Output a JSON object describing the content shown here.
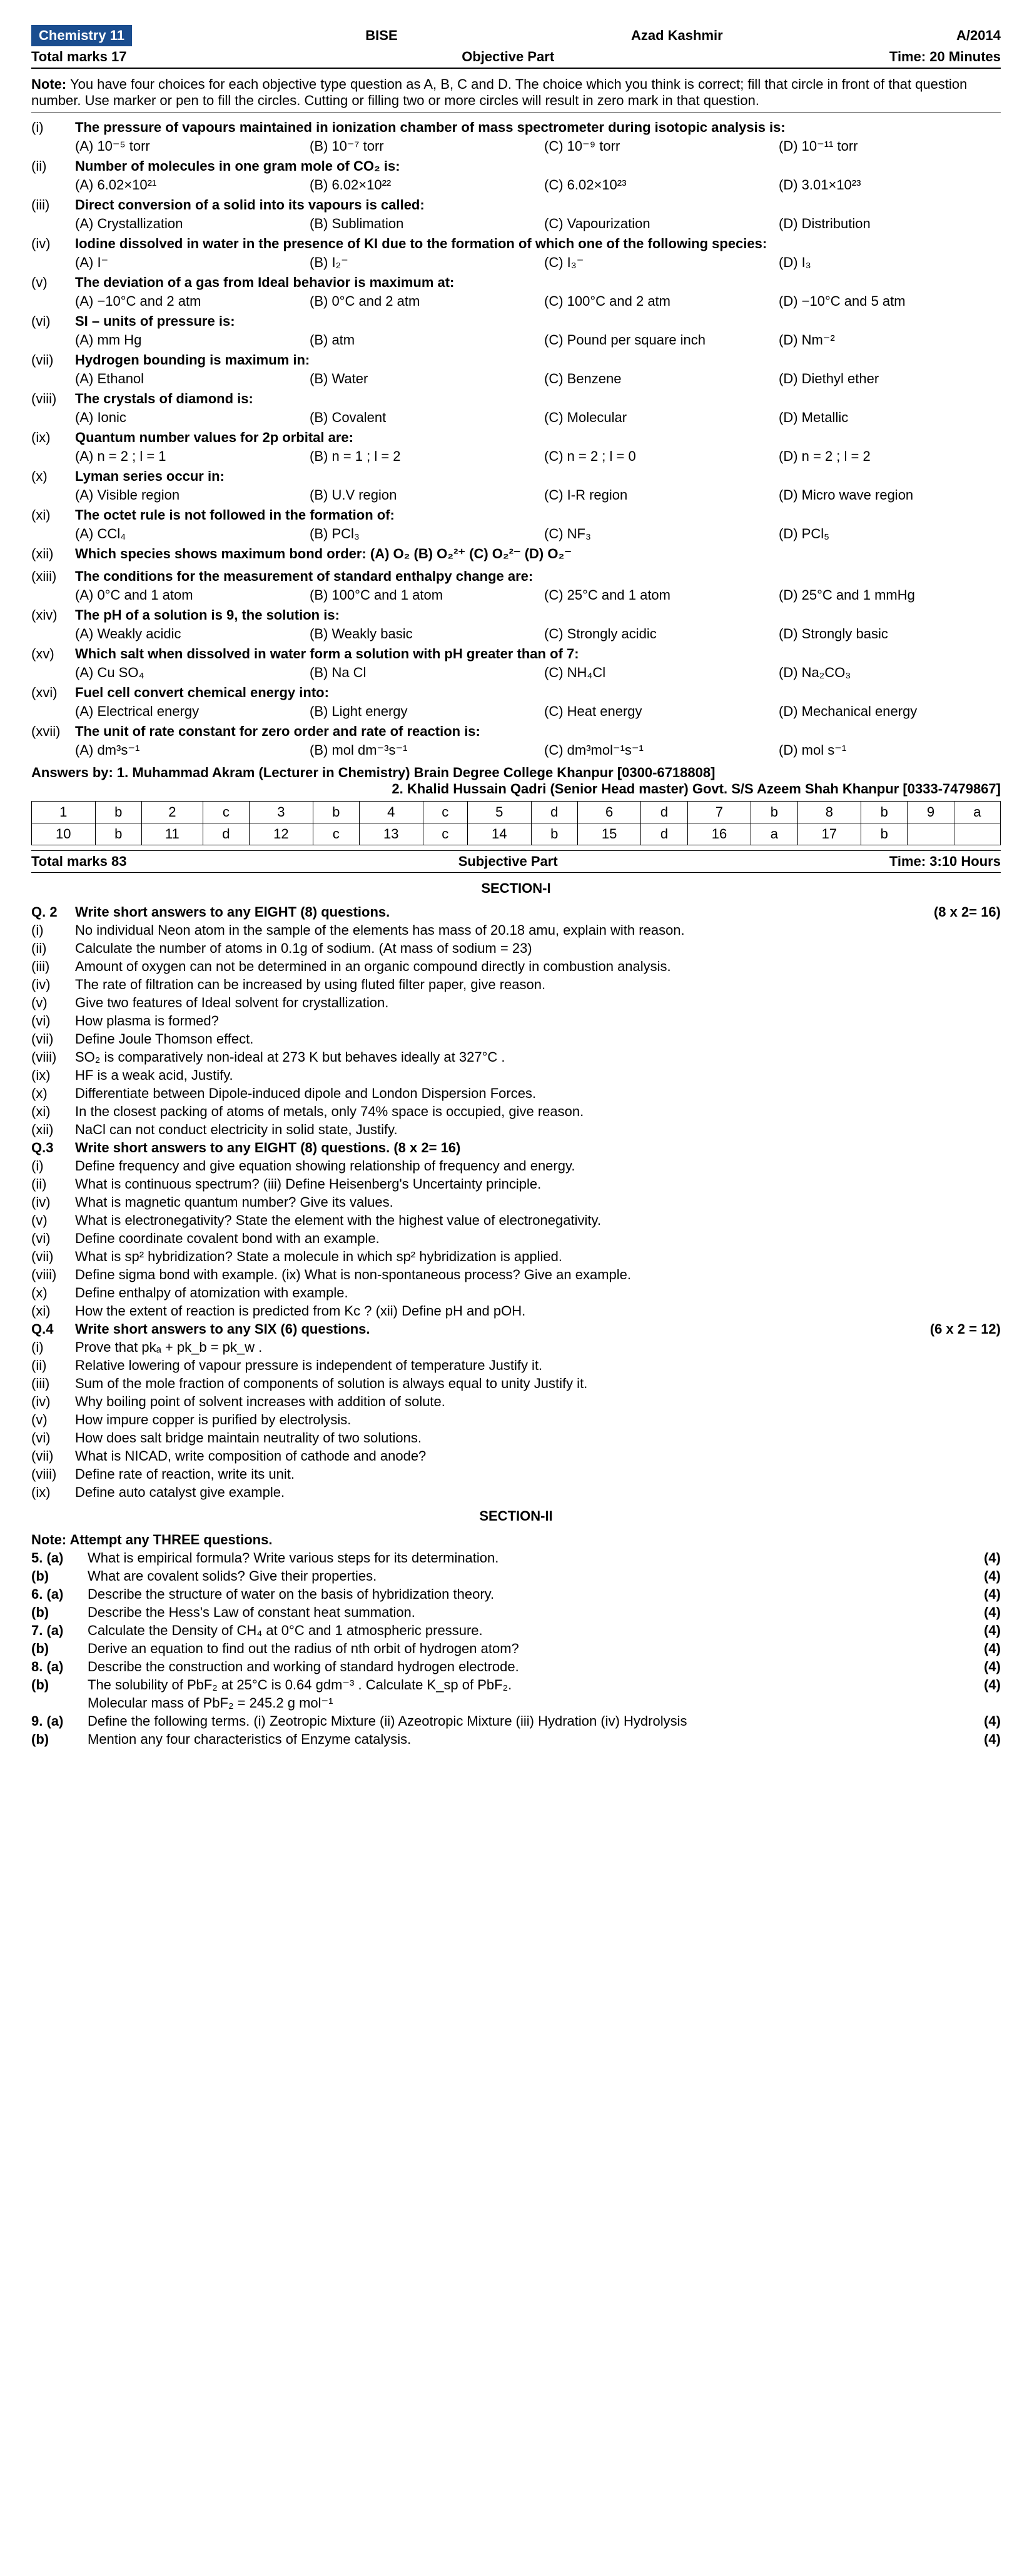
{
  "header": {
    "chip": "Chemistry 11",
    "board": "BISE",
    "region": "Azad Kashmir",
    "session": "A/2014",
    "total_marks_obj": "Total marks 17",
    "part_obj": "Objective Part",
    "time_obj": "Time: 20 Minutes",
    "note_label": "Note:",
    "note": "You have four choices for each objective type question as A, B, C and D. The choice which you think is correct; fill that circle in front of that question number. Use marker or pen to fill the circles. Cutting or filling two or more circles will result in zero mark in that question."
  },
  "mcqs": [
    {
      "n": "(i)",
      "q": "The pressure of vapours maintained in ionization chamber of mass spectrometer during isotopic analysis is:",
      "o": [
        "(A) 10⁻⁵ torr",
        "(B) 10⁻⁷ torr",
        "(C) 10⁻⁹ torr",
        "(D) 10⁻¹¹ torr"
      ]
    },
    {
      "n": "(ii)",
      "q": "Number of molecules in one gram mole of CO₂ is:",
      "o": [
        "(A) 6.02×10²¹",
        "(B) 6.02×10²²",
        "(C) 6.02×10²³",
        "(D) 3.01×10²³"
      ]
    },
    {
      "n": "(iii)",
      "q": "Direct conversion of a solid into its vapours is called:",
      "o": [
        "(A) Crystallization",
        "(B) Sublimation",
        "(C) Vapourization",
        "(D) Distribution"
      ]
    },
    {
      "n": "(iv)",
      "q": "Iodine dissolved in water in the presence of KI due to the formation of which one of the following species:",
      "o": [
        "(A) I⁻",
        "(B) I₂⁻",
        "(C) I₃⁻",
        "(D) I₃"
      ]
    },
    {
      "n": "(v)",
      "q": "The deviation of a gas from Ideal behavior is maximum at:",
      "o": [
        "(A) −10°C and 2 atm",
        "(B) 0°C and 2 atm",
        "(C) 100°C and 2 atm",
        "(D) −10°C and 5 atm"
      ]
    },
    {
      "n": "(vi)",
      "q": "SI – units of pressure is:",
      "o": [
        "(A) mm Hg",
        "(B) atm",
        "(C) Pound per square inch",
        "(D) Nm⁻²"
      ]
    },
    {
      "n": "(vii)",
      "q": "Hydrogen bounding is maximum in:",
      "o": [
        "(A) Ethanol",
        "(B) Water",
        "(C) Benzene",
        "(D) Diethyl ether"
      ]
    },
    {
      "n": "(viii)",
      "q": "The crystals of diamond is:",
      "o": [
        "(A) Ionic",
        "(B) Covalent",
        "(C) Molecular",
        "(D) Metallic"
      ]
    },
    {
      "n": "(ix)",
      "q": "Quantum number values for 2p orbital are:",
      "o": [
        "(A) n = 2 ; l = 1",
        "(B) n = 1 ; l = 2",
        "(C) n = 2 ; l = 0",
        "(D) n = 2 ; l = 2"
      ]
    },
    {
      "n": "(x)",
      "q": "Lyman series occur in:",
      "o": [
        "(A) Visible region",
        "(B) U.V region",
        "(C) I-R region",
        "(D) Micro wave region"
      ]
    },
    {
      "n": "(xi)",
      "q": "The octet rule is not followed in the formation of:",
      "o": [
        "(A) CCl₄",
        "(B) PCl₃",
        "(C) NF₃",
        "(D) PCl₅"
      ]
    },
    {
      "n": "(xii)",
      "q": "Which species shows maximum bond order: (A) O₂      (B) O₂²⁺      (C) O₂²⁻      (D) O₂⁻",
      "o": []
    },
    {
      "n": "(xiii)",
      "q": "The conditions for the measurement of standard enthalpy change are:",
      "o": [
        "(A) 0°C and 1 atom",
        "(B) 100°C and 1 atom",
        "(C) 25°C and 1 atom",
        "(D) 25°C and 1 mmHg"
      ]
    },
    {
      "n": "(xiv)",
      "q": "The pH of a solution is 9, the solution is:",
      "o": [
        "(A) Weakly acidic",
        "(B) Weakly basic",
        "(C) Strongly acidic",
        "(D) Strongly basic"
      ]
    },
    {
      "n": "(xv)",
      "q": "Which salt when dissolved in water form a solution with pH greater than of 7:",
      "o": [
        "(A) Cu SO₄",
        "(B) Na Cl",
        "(C) NH₄Cl",
        "(D) Na₂CO₃"
      ]
    },
    {
      "n": "(xvi)",
      "q": "Fuel cell convert chemical energy into:",
      "o": [
        "(A) Electrical energy",
        "(B) Light energy",
        "(C) Heat energy",
        "(D) Mechanical energy"
      ]
    },
    {
      "n": "(xvii)",
      "q": "The unit of rate constant for zero order and rate of reaction is:",
      "o": [
        "(A) dm³s⁻¹",
        "(B) mol dm⁻³s⁻¹",
        "(C) dm³mol⁻¹s⁻¹",
        "(D) mol s⁻¹"
      ]
    }
  ],
  "answers": {
    "by1": "Answers by: 1. Muhammad Akram (Lecturer in Chemistry) Brain Degree College Khanpur [0300-6718808]",
    "by2": "2. Khalid Hussain Qadri (Senior Head master) Govt. S/S Azeem Shah Khanpur [0333-7479867]",
    "row1": [
      "1",
      "b",
      "2",
      "c",
      "3",
      "b",
      "4",
      "c",
      "5",
      "d",
      "6",
      "d",
      "7",
      "b",
      "8",
      "b",
      "9",
      "a"
    ],
    "row2": [
      "10",
      "b",
      "11",
      "d",
      "12",
      "c",
      "13",
      "c",
      "14",
      "b",
      "15",
      "d",
      "16",
      "a",
      "17",
      "b",
      "",
      ""
    ]
  },
  "subjective": {
    "total": "Total marks 83",
    "part": "Subjective Part",
    "time": "Time: 3:10 Hours",
    "section1": "SECTION-I",
    "q2": {
      "h": "Q. 2",
      "t": "Write short answers to any EIGHT (8) questions.",
      "m": "(8 x 2= 16)",
      "items": [
        {
          "n": "(i)",
          "t": "No individual Neon atom in the sample of the elements has mass of 20.18 amu, explain with reason."
        },
        {
          "n": "(ii)",
          "t": "Calculate the number of atoms in 0.1g of sodium. (At mass of sodium = 23)"
        },
        {
          "n": "(iii)",
          "t": "Amount of oxygen can not be determined in an organic compound directly in combustion analysis."
        },
        {
          "n": "(iv)",
          "t": "The rate of filtration can be increased by using fluted filter paper, give reason."
        },
        {
          "n": "(v)",
          "t": "Give two features of Ideal solvent for crystallization."
        },
        {
          "n": "(vi)",
          "t": "How plasma is formed?"
        },
        {
          "n": "(vii)",
          "t": "Define Joule Thomson effect."
        },
        {
          "n": "(viii)",
          "t": "SO₂ is comparatively non-ideal at 273 K but behaves ideally at 327°C ."
        },
        {
          "n": "(ix)",
          "t": "HF is a weak acid, Justify."
        },
        {
          "n": "(x)",
          "t": "Differentiate between Dipole-induced dipole and London Dispersion Forces."
        },
        {
          "n": "(xi)",
          "t": "In the closest packing of atoms of metals, only 74% space is occupied, give reason."
        },
        {
          "n": "(xii)",
          "t": "NaCl can not conduct electricity in solid state, Justify."
        }
      ]
    },
    "q3": {
      "h": "Q.3",
      "t": "Write short answers to any EIGHT (8) questions.    (8 x 2= 16)",
      "items": [
        {
          "n": "(i)",
          "t": "Define frequency and give equation showing relationship of frequency and energy."
        },
        {
          "n": "(ii)",
          "t": "What is continuous spectrum?                          (iii)      Define Heisenberg's Uncertainty principle."
        },
        {
          "n": "(iv)",
          "t": "What is magnetic quantum number? Give its values."
        },
        {
          "n": "(v)",
          "t": "What is electronegativity? State the element with the highest value of electronegativity."
        },
        {
          "n": "(vi)",
          "t": "Define coordinate covalent bond with an example."
        },
        {
          "n": "(vii)",
          "t": "What is sp² hybridization? State a molecule in which sp² hybridization is applied."
        },
        {
          "n": "(viii)",
          "t": "Define sigma bond with example.                     (ix)      What is non-spontaneous process? Give an example."
        },
        {
          "n": "(x)",
          "t": "Define enthalpy of atomization with example."
        },
        {
          "n": "(xi)",
          "t": "How the extent of reaction is predicted from Kc ? (xii)      Define pH and pOH."
        }
      ]
    },
    "q4": {
      "h": "Q.4",
      "t": "Write short answers to any SIX (6) questions.",
      "m": "(6 x 2 = 12)",
      "items": [
        {
          "n": "(i)",
          "t": "Prove that pkₐ + pk_b = pk_w ."
        },
        {
          "n": "(ii)",
          "t": "Relative lowering of vapour pressure is independent of temperature Justify it."
        },
        {
          "n": "(iii)",
          "t": "Sum of the mole fraction of components of solution is always equal to unity Justify it."
        },
        {
          "n": "(iv)",
          "t": "Why boiling point of solvent increases with addition of solute."
        },
        {
          "n": "(v)",
          "t": "How impure copper is purified by electrolysis."
        },
        {
          "n": "(vi)",
          "t": "How does salt bridge maintain neutrality of two solutions."
        },
        {
          "n": "(vii)",
          "t": "What is NICAD, write composition of cathode and anode?"
        },
        {
          "n": "(viii)",
          "t": "Define rate of reaction, write its unit."
        },
        {
          "n": "(ix)",
          "t": "Define auto catalyst give example."
        }
      ]
    },
    "section2": "SECTION-II",
    "note2": "Note: Attempt any THREE questions.",
    "longs": [
      {
        "n": "5. (a)",
        "t": "What is empirical formula? Write various steps for its determination.",
        "m": "(4)"
      },
      {
        "n": "(b)",
        "t": "What are covalent solids? Give their properties.",
        "m": "(4)"
      },
      {
        "n": "6. (a)",
        "t": "Describe the structure of water on the basis of hybridization theory.",
        "m": "(4)"
      },
      {
        "n": "(b)",
        "t": "Describe the Hess's Law of constant heat summation.",
        "m": "(4)"
      },
      {
        "n": "7. (a)",
        "t": "Calculate the Density of CH₄ at 0°C and 1 atmospheric pressure.",
        "m": "(4)"
      },
      {
        "n": "(b)",
        "t": "Derive an equation to find out the radius of nth orbit of hydrogen atom?",
        "m": "(4)"
      },
      {
        "n": "8. (a)",
        "t": "Describe the construction and working of standard hydrogen electrode.",
        "m": "(4)"
      },
      {
        "n": "(b)",
        "t": "The solubility of PbF₂ at 25°C is 0.64 gdm⁻³ . Calculate K_sp of PbF₂.",
        "m": "(4)"
      },
      {
        "n": "",
        "t": "Molecular mass of PbF₂ = 245.2 g mol⁻¹",
        "m": ""
      },
      {
        "n": "9. (a)",
        "t": "Define the following terms. (i) Zeotropic Mixture    (ii) Azeotropic Mixture    (iii) Hydration    (iv) Hydrolysis",
        "m": "(4)"
      },
      {
        "n": "(b)",
        "t": "Mention any four characteristics of Enzyme catalysis.",
        "m": "(4)"
      }
    ]
  }
}
